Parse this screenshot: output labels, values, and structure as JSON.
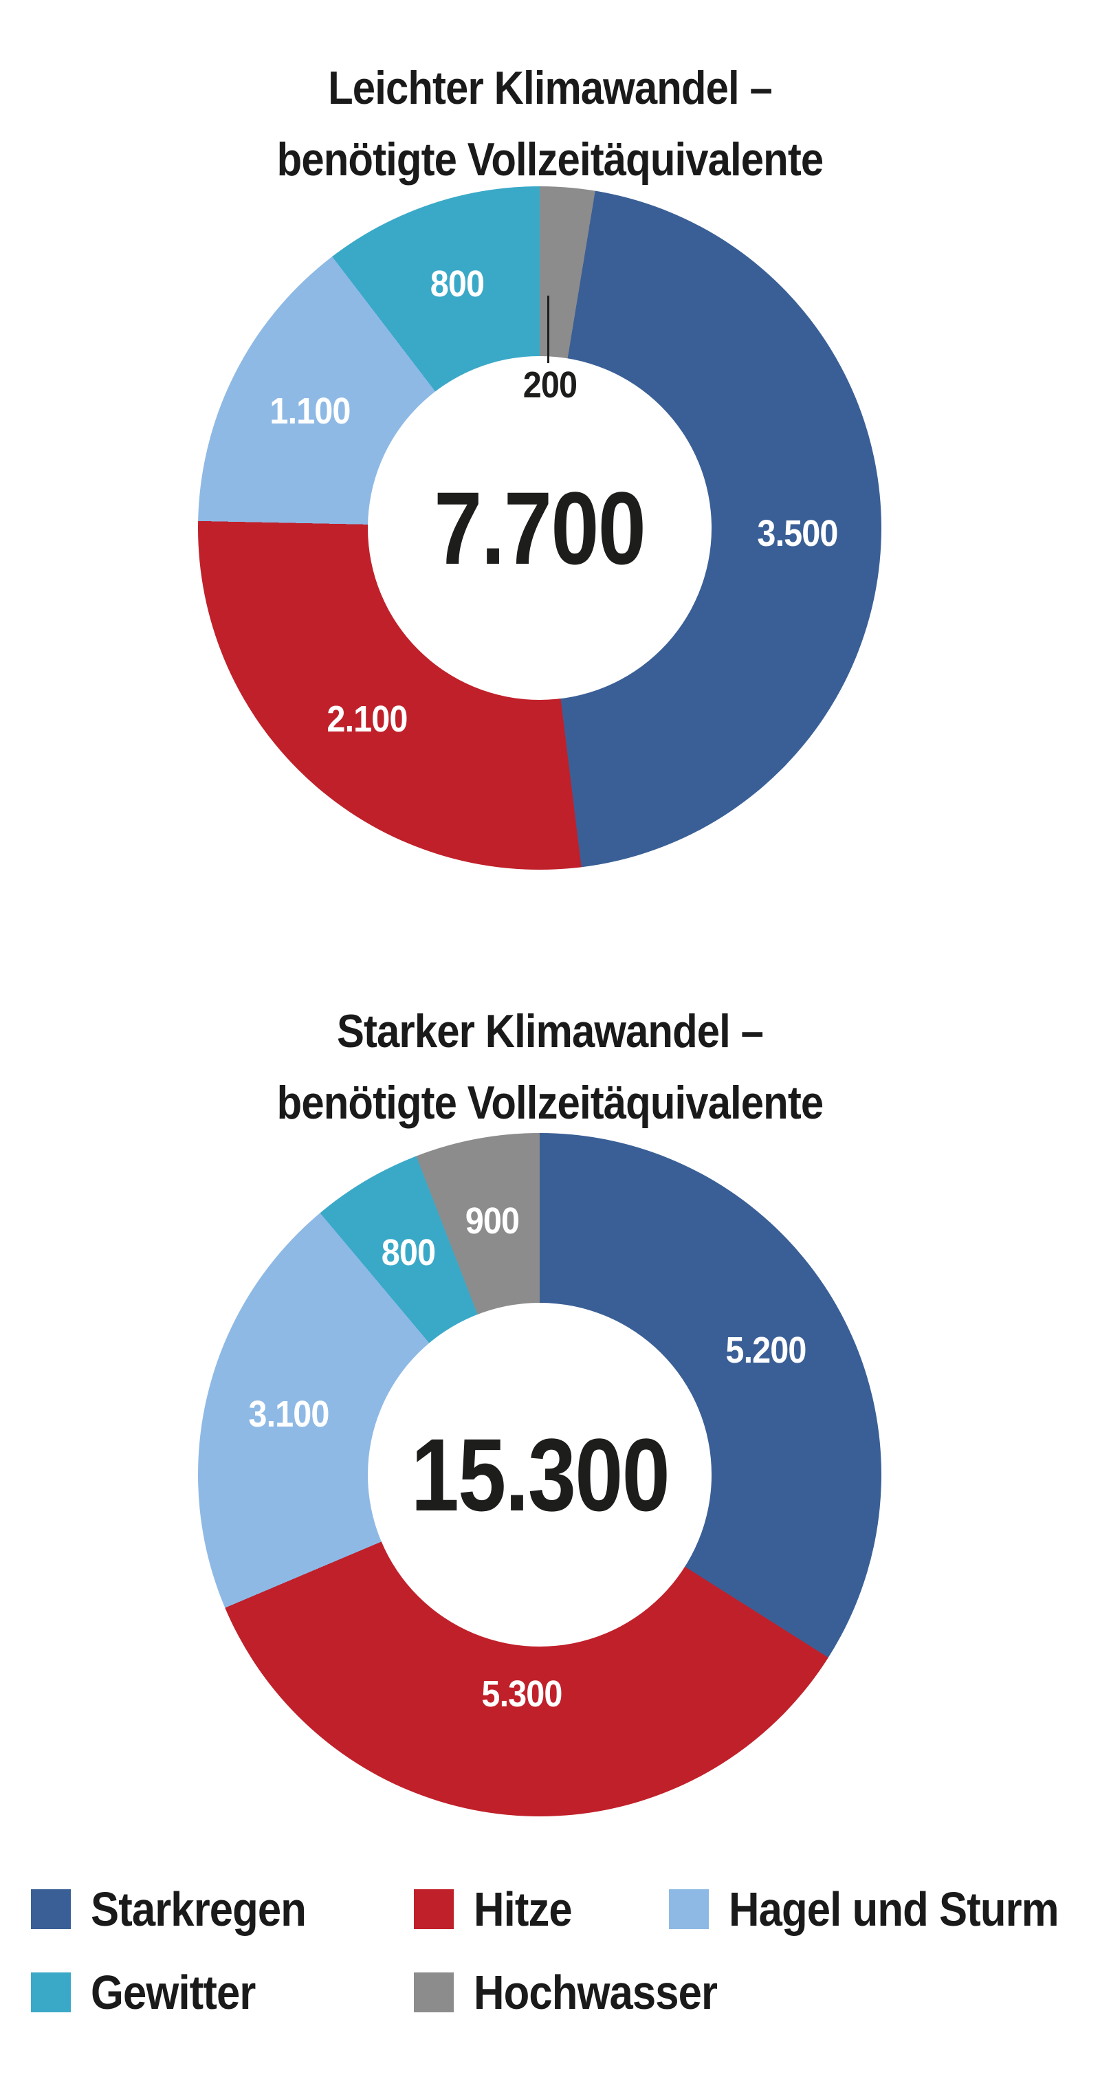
{
  "page": {
    "background": "#ffffff"
  },
  "colors": {
    "starkregen": "#3a5f96",
    "hitze": "#c0202a",
    "hagel_und_sturm": "#8eb9e5",
    "gewitter": "#3aa9c8",
    "hochwasser": "#8c8c8c",
    "text_dark": "#1d1d1b",
    "slice_label": "#ffffff"
  },
  "chart_data": [
    {
      "type": "pie",
      "subtype": "donut",
      "title": "Leichter Klimawandel – benötigte Vollzeitäquivalente",
      "title_lines": [
        "Leichter Klimawandel –",
        "benötigte Vollzeitäquivalente"
      ],
      "center_total_label": "7.700",
      "center_total_value": 7700,
      "legend_position": "bottom",
      "slices": [
        {
          "name": "Hochwasser",
          "value": 200,
          "label": "200",
          "color": "#8c8c8c",
          "label_style": "callout-center"
        },
        {
          "name": "Starkregen",
          "value": 3500,
          "label": "3.500",
          "color": "#3a5f96",
          "label_style": "inside"
        },
        {
          "name": "Hitze",
          "value": 2100,
          "label": "2.100",
          "color": "#c0202a",
          "label_style": "inside"
        },
        {
          "name": "Hagel und Sturm",
          "value": 1100,
          "label": "1.100",
          "color": "#8eb9e5",
          "label_style": "inside"
        },
        {
          "name": "Gewitter",
          "value": 800,
          "label": "800",
          "color": "#3aa9c8",
          "label_style": "inside"
        }
      ]
    },
    {
      "type": "pie",
      "subtype": "donut",
      "title": "Starker Klimawandel – benötigte Vollzeitäquivalente",
      "title_lines": [
        "Starker Klimawandel –",
        "benötigte Vollzeitäquivalente"
      ],
      "center_total_label": "15.300",
      "center_total_value": 15300,
      "legend_position": "bottom",
      "slices": [
        {
          "name": "Starkregen",
          "value": 5200,
          "label": "5.200",
          "color": "#3a5f96",
          "label_style": "inside"
        },
        {
          "name": "Hitze",
          "value": 5300,
          "label": "5.300",
          "color": "#c0202a",
          "label_style": "inside"
        },
        {
          "name": "Hagel und Sturm",
          "value": 3100,
          "label": "3.100",
          "color": "#8eb9e5",
          "label_style": "inside"
        },
        {
          "name": "Gewitter",
          "value": 800,
          "label": "800",
          "color": "#3aa9c8",
          "label_style": "inside"
        },
        {
          "name": "Hochwasser",
          "value": 900,
          "label": "900",
          "color": "#8c8c8c",
          "label_style": "inside"
        }
      ]
    }
  ],
  "legend": {
    "rows": [
      [
        {
          "label": "Starkregen",
          "color": "#3a5f96"
        },
        {
          "label": "Hitze",
          "color": "#c0202a"
        },
        {
          "label": "Hagel und Sturm",
          "color": "#8eb9e5"
        }
      ],
      [
        {
          "label": "Gewitter",
          "color": "#3aa9c8"
        },
        {
          "label": "Hochwasser",
          "color": "#8c8c8c"
        }
      ]
    ]
  }
}
